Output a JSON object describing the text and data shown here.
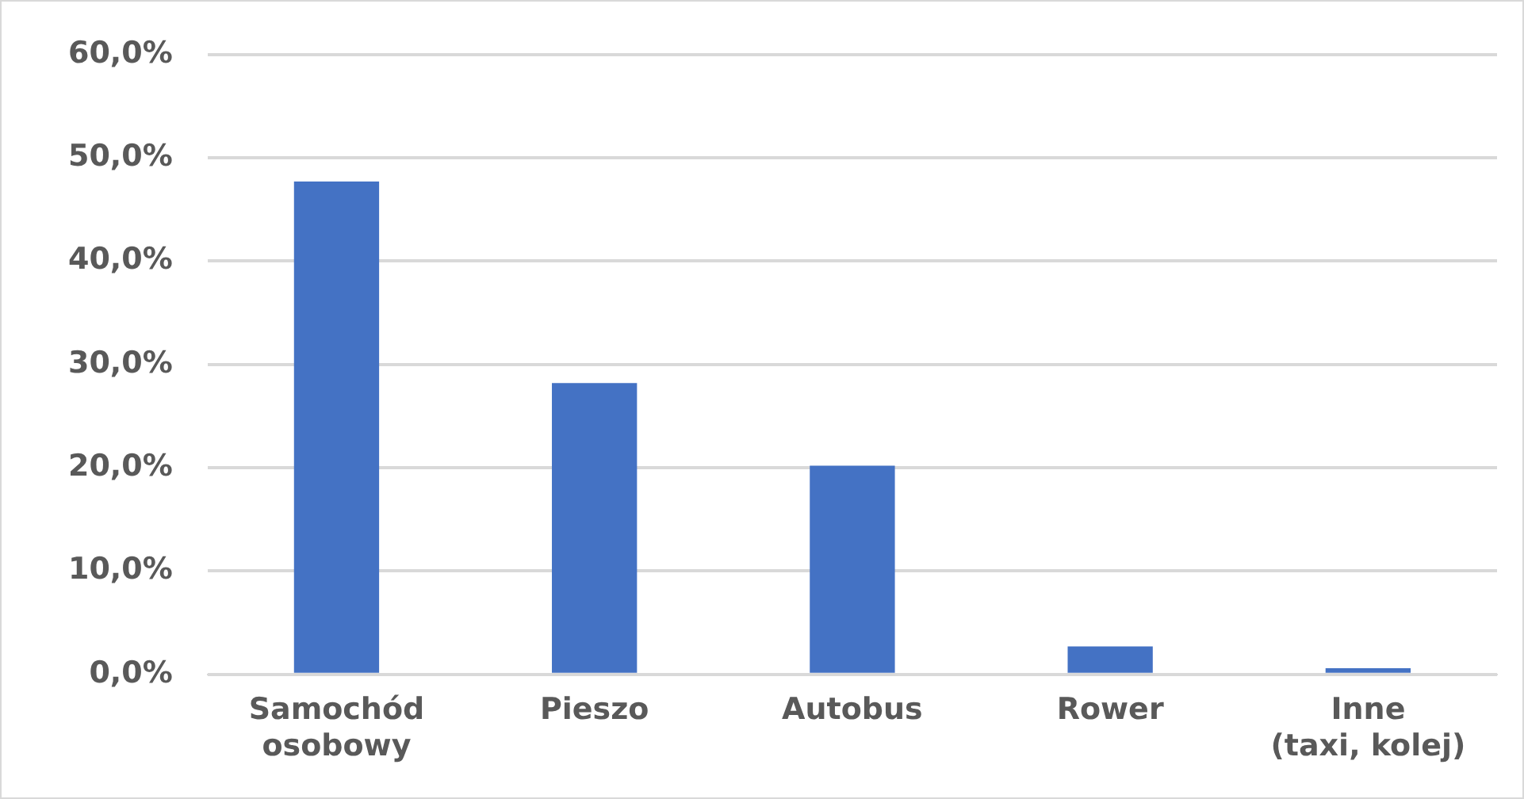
{
  "chart_data": {
    "type": "bar",
    "categories": [
      "Samochód osobowy",
      "Pieszo",
      "Autobus",
      "Rower",
      "Inne (taxi, kolej)"
    ],
    "values": [
      47.7,
      28.2,
      20.2,
      2.7,
      0.6
    ],
    "color": "#4472c4",
    "ylim": [
      0,
      60
    ],
    "yticks": [
      {
        "value": 0,
        "label": "0,0%"
      },
      {
        "value": 10,
        "label": "10,0%"
      },
      {
        "value": 20,
        "label": "20,0%"
      },
      {
        "value": 30,
        "label": "30,0%"
      },
      {
        "value": 40,
        "label": "40,0%"
      },
      {
        "value": 50,
        "label": "50,0%"
      },
      {
        "value": 60,
        "label": "60,0%"
      }
    ],
    "grid": "y",
    "legend": false
  }
}
